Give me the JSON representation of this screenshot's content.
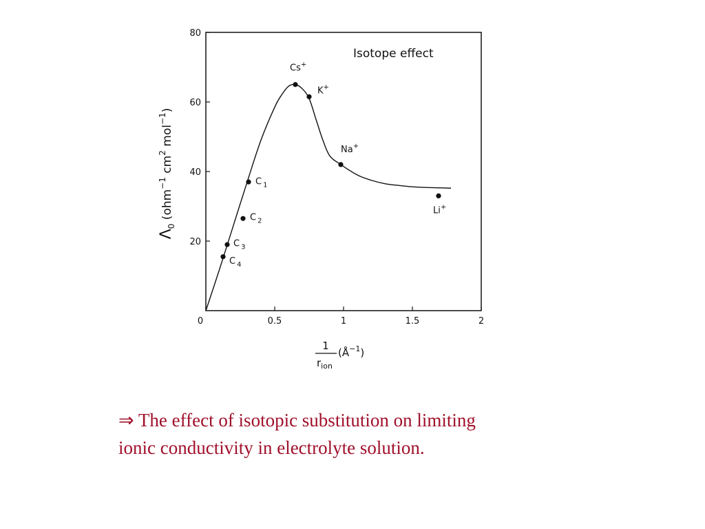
{
  "chart_data": {
    "type": "scatter",
    "annotation": "Isotope effect",
    "xlim": [
      0,
      2
    ],
    "ylim": [
      0,
      80
    ],
    "x_ticks": [
      {
        "value": 0,
        "label": "0"
      },
      {
        "value": 0.5,
        "label": "0.5"
      },
      {
        "value": 1,
        "label": "1"
      },
      {
        "value": 1.5,
        "label": "1.5"
      },
      {
        "value": 2,
        "label": "2"
      }
    ],
    "y_ticks": [
      {
        "value": 20,
        "label": "20"
      },
      {
        "value": 40,
        "label": "40"
      },
      {
        "value": 60,
        "label": "60"
      },
      {
        "value": 80,
        "label": "80"
      }
    ],
    "xlabel": {
      "num": "1",
      "den_main": "r",
      "den_sub": "ion",
      "unit": "(Å",
      "unit_sup": "−1",
      "unit_close": ")"
    },
    "ylabel": {
      "symbol": "Λ",
      "symbol_sub": "0",
      "open": "(ohm",
      "sup1": "−1",
      "cm": "cm",
      "sup2": "2",
      "mol": "mol",
      "sup3": "−1",
      "close": ")"
    },
    "points": [
      {
        "label": "Cs",
        "sup": "+",
        "sub": "",
        "x": 0.65,
        "y": 65,
        "lx": -0.04,
        "ly": 4
      },
      {
        "label": "K",
        "sup": "+",
        "sub": "",
        "x": 0.75,
        "y": 61.5,
        "lx": 0.06,
        "ly": 1
      },
      {
        "label": "Na",
        "sup": "+",
        "sub": "",
        "x": 0.98,
        "y": 42,
        "lx": 0.0,
        "ly": 3.5
      },
      {
        "label": "Li",
        "sup": "+",
        "sub": "",
        "x": 1.69,
        "y": 33,
        "lx": -0.04,
        "ly": -5
      },
      {
        "label": "C",
        "sup": "",
        "sub": "1",
        "x": 0.31,
        "y": 37,
        "lx": 0.05,
        "ly": -0.7
      },
      {
        "label": "C",
        "sup": "",
        "sub": "2",
        "x": 0.27,
        "y": 26.5,
        "lx": 0.05,
        "ly": -0.5
      },
      {
        "label": "C",
        "sup": "",
        "sub": "3",
        "x": 0.155,
        "y": 19,
        "lx": 0.045,
        "ly": -0.5
      },
      {
        "label": "C",
        "sup": "",
        "sub": "4",
        "x": 0.125,
        "y": 15.5,
        "lx": 0.045,
        "ly": -2
      }
    ],
    "curve": {
      "x": [
        0,
        0.1,
        0.2,
        0.3,
        0.4,
        0.5,
        0.55,
        0.6,
        0.65,
        0.7,
        0.75,
        0.8,
        0.85,
        0.9,
        0.98,
        1.1,
        1.2,
        1.3,
        1.4,
        1.5,
        1.6,
        1.7,
        1.78
      ],
      "y": [
        0,
        12,
        24.5,
        37,
        49,
        58.5,
        62,
        64.5,
        65,
        63.8,
        61,
        55,
        49,
        44.5,
        42,
        39,
        37.5,
        36.5,
        36,
        35.6,
        35.4,
        35.3,
        35.2
      ]
    }
  },
  "caption": {
    "arrow": "⇒",
    "line1": "The effect of isotopic substitution on limiting",
    "line2": "ionic conductivity  in electrolyte solution."
  }
}
